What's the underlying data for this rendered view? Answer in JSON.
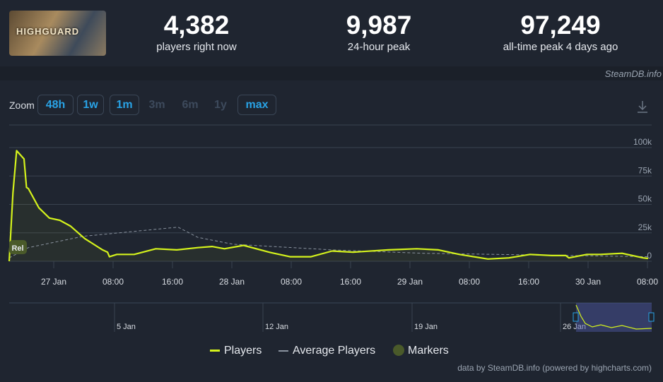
{
  "header": {
    "game_logo_text": "HIGHGUARD",
    "stats": [
      {
        "value": "4,382",
        "label": "players right now"
      },
      {
        "value": "9,987",
        "label": "24-hour peak"
      },
      {
        "value": "97,249",
        "label": "all-time peak 4 days ago"
      }
    ],
    "credit": "SteamDB.info"
  },
  "zoom": {
    "label": "Zoom",
    "buttons": [
      {
        "label": "48h",
        "enabled": true
      },
      {
        "label": "1w",
        "enabled": true
      },
      {
        "label": "1m",
        "enabled": true
      },
      {
        "label": "3m",
        "enabled": false
      },
      {
        "label": "6m",
        "enabled": false
      },
      {
        "label": "1y",
        "enabled": false
      },
      {
        "label": "max",
        "enabled": true
      }
    ]
  },
  "download_icon": "download-icon",
  "chart_data": {
    "type": "line",
    "ylim": [
      0,
      100000
    ],
    "yticks": [
      "0",
      "25k",
      "50k",
      "75k",
      "100k"
    ],
    "xticks": [
      "27 Jan",
      "08:00",
      "16:00",
      "28 Jan",
      "08:00",
      "16:00",
      "29 Jan",
      "08:00",
      "16:00",
      "30 Jan",
      "08:00"
    ],
    "grid": true,
    "legend_position": "bottom",
    "colors": {
      "players": "#d4f21c",
      "average": "#8a939f",
      "markers": "#4a5a2a"
    },
    "series": [
      {
        "name": "Players",
        "points": [
          [
            "26 Jan 18:00",
            0
          ],
          [
            "26 Jan 18:30",
            60000
          ],
          [
            "26 Jan 19:00",
            97249
          ],
          [
            "26 Jan 20:00",
            90000
          ],
          [
            "26 Jan 20:20",
            65000
          ],
          [
            "26 Jan 20:35",
            64000
          ],
          [
            "26 Jan 22:00",
            47000
          ],
          [
            "26 Jan 23:25",
            38000
          ],
          [
            "27 Jan 00:50",
            36000
          ],
          [
            "27 Jan 02:15",
            31000
          ],
          [
            "27 Jan 04:10",
            20000
          ],
          [
            "27 Jan 06:35",
            10000
          ],
          [
            "27 Jan 07:15",
            8000
          ],
          [
            "27 Jan 07:30",
            4000
          ],
          [
            "27 Jan 08:30",
            6000
          ],
          [
            "27 Jan 10:50",
            6000
          ],
          [
            "27 Jan 13:45",
            11000
          ],
          [
            "27 Jan 16:35",
            10000
          ],
          [
            "27 Jan 19:25",
            12000
          ],
          [
            "27 Jan 21:20",
            13000
          ],
          [
            "27 Jan 23:00",
            11000
          ],
          [
            "28 Jan 01:35",
            14000
          ],
          [
            "28 Jan 05:00",
            8000
          ],
          [
            "28 Jan 07:50",
            4000
          ],
          [
            "28 Jan 10:40",
            4000
          ],
          [
            "28 Jan 13:30",
            9000
          ],
          [
            "28 Jan 16:20",
            8000
          ],
          [
            "28 Jan 21:05",
            10000
          ],
          [
            "29 Jan 00:55",
            11000
          ],
          [
            "29 Jan 03:50",
            10000
          ],
          [
            "29 Jan 06:40",
            6000
          ],
          [
            "29 Jan 10:30",
            2000
          ],
          [
            "29 Jan 13:20",
            3000
          ],
          [
            "29 Jan 16:10",
            6000
          ],
          [
            "29 Jan 19:05",
            5000
          ],
          [
            "29 Jan 21:00",
            5000
          ],
          [
            "29 Jan 21:25",
            3000
          ],
          [
            "29 Jan 23:50",
            6000
          ],
          [
            "30 Jan 01:40",
            6000
          ],
          [
            "30 Jan 04:35",
            7000
          ],
          [
            "30 Jan 07:25",
            3000
          ],
          [
            "30 Jan 08:05",
            2500
          ]
        ]
      },
      {
        "name": "Average Players",
        "points": [
          [
            "26 Jan 18:00",
            3000
          ],
          [
            "26 Jan 20:35",
            12000
          ],
          [
            "27 Jan 04:00",
            22000
          ],
          [
            "27 Jan 16:45",
            30000
          ],
          [
            "27 Jan 19:25",
            21000
          ],
          [
            "28 Jan 00:10",
            15000
          ],
          [
            "28 Jan 13:30",
            10000
          ],
          [
            "29 Jan 01:55",
            7000
          ],
          [
            "30 Jan 08:05",
            4000
          ]
        ]
      }
    ],
    "markers": [
      {
        "label": "Rel",
        "time": "26 Jan 18:00"
      }
    ],
    "navigator": {
      "labels": [
        "5 Jan",
        "12 Jan",
        "19 Jan",
        "26 Jan"
      ]
    },
    "legend": [
      "Players",
      "Average Players",
      "Markers"
    ]
  },
  "footer_credit": "data by SteamDB.info (powered by highcharts.com)"
}
